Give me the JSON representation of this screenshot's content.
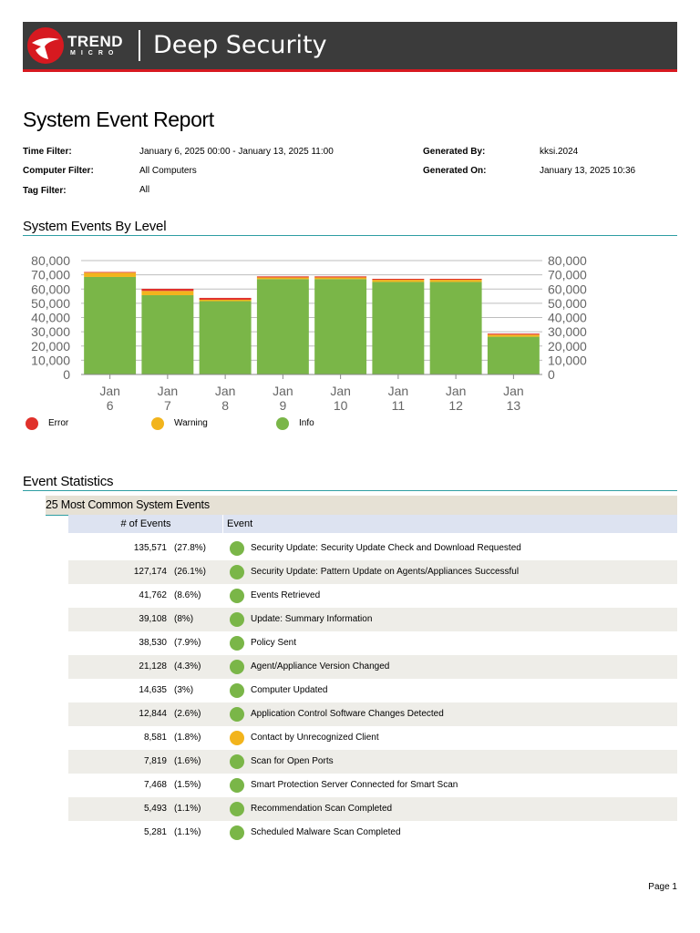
{
  "banner": {
    "brand_top": "TREND",
    "brand_bottom": "MICRO",
    "product": "Deep Security"
  },
  "report": {
    "title": "System Event Report",
    "meta": {
      "time_filter_label": "Time Filter:",
      "time_filter_value": "January 6, 2025 00:00 - January 13, 2025 11:00",
      "computer_filter_label": "Computer Filter:",
      "computer_filter_value": "All Computers",
      "tag_filter_label": "Tag Filter:",
      "tag_filter_value": "All",
      "generated_by_label": "Generated By:",
      "generated_by_value": "kksi.2024",
      "generated_on_label": "Generated On:",
      "generated_on_value": "January 13, 2025 10:36"
    }
  },
  "sections": {
    "events_by_level": "System Events By Level",
    "event_statistics": "Event Statistics",
    "most_common": "25 Most Common System Events"
  },
  "chart_data": {
    "type": "bar",
    "stacked": true,
    "categories": [
      [
        "Jan",
        "6"
      ],
      [
        "Jan",
        "7"
      ],
      [
        "Jan",
        "8"
      ],
      [
        "Jan",
        "9"
      ],
      [
        "Jan",
        "10"
      ],
      [
        "Jan",
        "11"
      ],
      [
        "Jan",
        "12"
      ],
      [
        "Jan",
        "13"
      ]
    ],
    "series": [
      {
        "name": "Info",
        "color": "#7ab648",
        "values": [
          68500,
          55700,
          51500,
          67000,
          67000,
          65000,
          65000,
          26500
        ]
      },
      {
        "name": "Warning",
        "color": "#f2b41c",
        "values": [
          3000,
          3000,
          1000,
          1200,
          1200,
          1500,
          1500,
          1500
        ]
      },
      {
        "name": "Error",
        "color": "#e0312b",
        "values": [
          500,
          1500,
          1300,
          700,
          700,
          700,
          700,
          700
        ]
      }
    ],
    "ylim": [
      0,
      80000
    ],
    "yticks": [
      "0",
      "10,000",
      "20,000",
      "30,000",
      "40,000",
      "50,000",
      "60,000",
      "70,000",
      "80,000"
    ],
    "ytick_values": [
      0,
      10000,
      20000,
      30000,
      40000,
      50000,
      60000,
      70000,
      80000
    ],
    "dual_y_axis": true,
    "grid": true,
    "legend_position": "bottom-left"
  },
  "legend": [
    {
      "label": "Error",
      "color": "#e0312b"
    },
    {
      "label": "Warning",
      "color": "#f2b41c"
    },
    {
      "label": "Info",
      "color": "#7ab648"
    }
  ],
  "table": {
    "headers": {
      "count": "# of Events",
      "event": "Event"
    },
    "rows": [
      {
        "count": "135,571",
        "pct": "(27.8%)",
        "level": "info",
        "event": "Security Update: Security Update Check and Download Requested"
      },
      {
        "count": "127,174",
        "pct": "(26.1%)",
        "level": "info",
        "event": "Security Update: Pattern Update on Agents/Appliances Successful"
      },
      {
        "count": "41,762",
        "pct": "(8.6%)",
        "level": "info",
        "event": "Events Retrieved"
      },
      {
        "count": "39,108",
        "pct": "(8%)",
        "level": "info",
        "event": "Update: Summary Information"
      },
      {
        "count": "38,530",
        "pct": "(7.9%)",
        "level": "info",
        "event": "Policy Sent"
      },
      {
        "count": "21,128",
        "pct": "(4.3%)",
        "level": "info",
        "event": "Agent/Appliance Version Changed"
      },
      {
        "count": "14,635",
        "pct": "(3%)",
        "level": "info",
        "event": "Computer Updated"
      },
      {
        "count": "12,844",
        "pct": "(2.6%)",
        "level": "info",
        "event": "Application Control Software Changes Detected"
      },
      {
        "count": "8,581",
        "pct": "(1.8%)",
        "level": "warning",
        "event": "Contact by Unrecognized Client"
      },
      {
        "count": "7,819",
        "pct": "(1.6%)",
        "level": "info",
        "event": "Scan for Open Ports"
      },
      {
        "count": "7,468",
        "pct": "(1.5%)",
        "level": "info",
        "event": "Smart Protection Server Connected for Smart Scan"
      },
      {
        "count": "5,493",
        "pct": "(1.1%)",
        "level": "info",
        "event": "Recommendation Scan Completed"
      },
      {
        "count": "5,281",
        "pct": "(1.1%)",
        "level": "info",
        "event": "Scheduled Malware Scan Completed"
      }
    ]
  },
  "level_colors": {
    "info": "#7ab648",
    "warning": "#f2b41c",
    "error": "#e0312b"
  },
  "footer": {
    "page": "Page 1"
  }
}
